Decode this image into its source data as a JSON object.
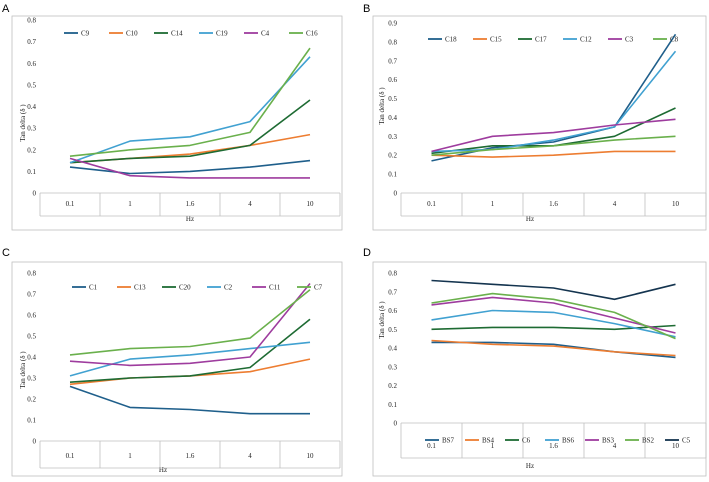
{
  "panels": [
    {
      "letter": "A",
      "chart_data": {
        "type": "line",
        "categories": [
          "0.1",
          "1",
          "1.6",
          "4",
          "10"
        ],
        "xlabel": "Hz",
        "ylabel": "Tan delta (δ )",
        "ylim": [
          0,
          0.8
        ],
        "yticks": [
          "0",
          "0.1",
          "0.2",
          "0.3",
          "0.4",
          "0.5",
          "0.6",
          "0.7",
          "0.8"
        ],
        "legend": "top",
        "series": [
          {
            "name": "C9",
            "color": "#1f5f8b",
            "values": [
              0.12,
              0.09,
              0.1,
              0.12,
              0.15
            ]
          },
          {
            "name": "C10",
            "color": "#ed7d31",
            "values": [
              0.14,
              0.16,
              0.18,
              0.22,
              0.27
            ]
          },
          {
            "name": "C14",
            "color": "#1e6b33",
            "values": [
              0.14,
              0.16,
              0.17,
              0.22,
              0.43
            ]
          },
          {
            "name": "C19",
            "color": "#41a1d1",
            "values": [
              0.14,
              0.24,
              0.26,
              0.33,
              0.63
            ]
          },
          {
            "name": "C4",
            "color": "#9e3c9e",
            "values": [
              0.16,
              0.08,
              0.07,
              0.07,
              0.07
            ]
          },
          {
            "name": "C16",
            "color": "#6ab04c",
            "values": [
              0.17,
              0.2,
              0.22,
              0.28,
              0.67
            ]
          }
        ]
      }
    },
    {
      "letter": "B",
      "chart_data": {
        "type": "line",
        "categories": [
          "0.1",
          "1",
          "1.6",
          "4",
          "10"
        ],
        "xlabel": "Hz",
        "ylabel": "Tan delta (δ )",
        "ylim": [
          0,
          0.9
        ],
        "yticks": [
          "0",
          "0.1",
          "0.2",
          "0.3",
          "0.4",
          "0.5",
          "0.6",
          "0.7",
          "0.8",
          "0.9"
        ],
        "legend": "top",
        "series": [
          {
            "name": "C18",
            "color": "#1f5f8b",
            "values": [
              0.17,
              0.24,
              0.27,
              0.35,
              0.84
            ]
          },
          {
            "name": "C15",
            "color": "#ed7d31",
            "values": [
              0.2,
              0.19,
              0.2,
              0.22,
              0.22
            ]
          },
          {
            "name": "C17",
            "color": "#1e6b33",
            "values": [
              0.21,
              0.25,
              0.25,
              0.3,
              0.45
            ]
          },
          {
            "name": "C12",
            "color": "#41a1d1",
            "values": [
              0.22,
              0.23,
              0.28,
              0.35,
              0.75
            ]
          },
          {
            "name": "C3",
            "color": "#9e3c9e",
            "values": [
              0.22,
              0.3,
              0.32,
              0.36,
              0.39
            ]
          },
          {
            "name": "C8",
            "color": "#6ab04c",
            "values": [
              0.2,
              0.23,
              0.25,
              0.28,
              0.3
            ]
          }
        ]
      }
    },
    {
      "letter": "C",
      "chart_data": {
        "type": "line",
        "categories": [
          "0.1",
          "1",
          "1.6",
          "4",
          "10"
        ],
        "xlabel": "Hz",
        "ylabel": "Tan delta (δ )",
        "ylim": [
          0,
          0.8
        ],
        "yticks": [
          "0",
          "0.1",
          "0.2",
          "0.3",
          "0.4",
          "0.5",
          "0.6",
          "0.7",
          "0.8"
        ],
        "legend": "top",
        "series": [
          {
            "name": "C1",
            "color": "#1f5f8b",
            "values": [
              0.26,
              0.16,
              0.15,
              0.13,
              0.13
            ]
          },
          {
            "name": "C13",
            "color": "#ed7d31",
            "values": [
              0.27,
              0.3,
              0.31,
              0.33,
              0.39
            ]
          },
          {
            "name": "C20",
            "color": "#1e6b33",
            "values": [
              0.28,
              0.3,
              0.31,
              0.35,
              0.58
            ]
          },
          {
            "name": "C2",
            "color": "#41a1d1",
            "values": [
              0.31,
              0.39,
              0.41,
              0.44,
              0.47
            ]
          },
          {
            "name": "C11",
            "color": "#9e3c9e",
            "values": [
              0.38,
              0.36,
              0.37,
              0.4,
              0.75
            ]
          },
          {
            "name": "C7",
            "color": "#6ab04c",
            "values": [
              0.41,
              0.44,
              0.45,
              0.49,
              0.72
            ]
          }
        ]
      }
    },
    {
      "letter": "D",
      "chart_data": {
        "type": "line",
        "categories": [
          "0.1",
          "1",
          "1.6",
          "4",
          "10"
        ],
        "xlabel": "Hz",
        "ylabel": "Tan delta (δ )",
        "ylim": [
          0,
          0.8
        ],
        "yticks": [
          "0",
          "0.1",
          "0.2",
          "0.3",
          "0.4",
          "0.5",
          "0.6",
          "0.7",
          "0.8"
        ],
        "legend": "bottom",
        "series": [
          {
            "name": "BS7",
            "color": "#1f5f8b",
            "values": [
              0.43,
              0.43,
              0.42,
              0.38,
              0.35
            ]
          },
          {
            "name": "BS4",
            "color": "#ed7d31",
            "values": [
              0.44,
              0.42,
              0.41,
              0.38,
              0.36
            ]
          },
          {
            "name": "C6",
            "color": "#1e6b33",
            "values": [
              0.5,
              0.51,
              0.51,
              0.5,
              0.52
            ]
          },
          {
            "name": "BS6",
            "color": "#41a1d1",
            "values": [
              0.55,
              0.6,
              0.59,
              0.53,
              0.46
            ]
          },
          {
            "name": "BS3",
            "color": "#9e3c9e",
            "values": [
              0.63,
              0.67,
              0.64,
              0.56,
              0.48
            ]
          },
          {
            "name": "BS2",
            "color": "#6ab04c",
            "values": [
              0.64,
              0.69,
              0.66,
              0.59,
              0.45
            ]
          },
          {
            "name": "C5",
            "color": "#14344f",
            "values": [
              0.76,
              0.74,
              0.72,
              0.66,
              0.74
            ]
          }
        ]
      }
    }
  ]
}
